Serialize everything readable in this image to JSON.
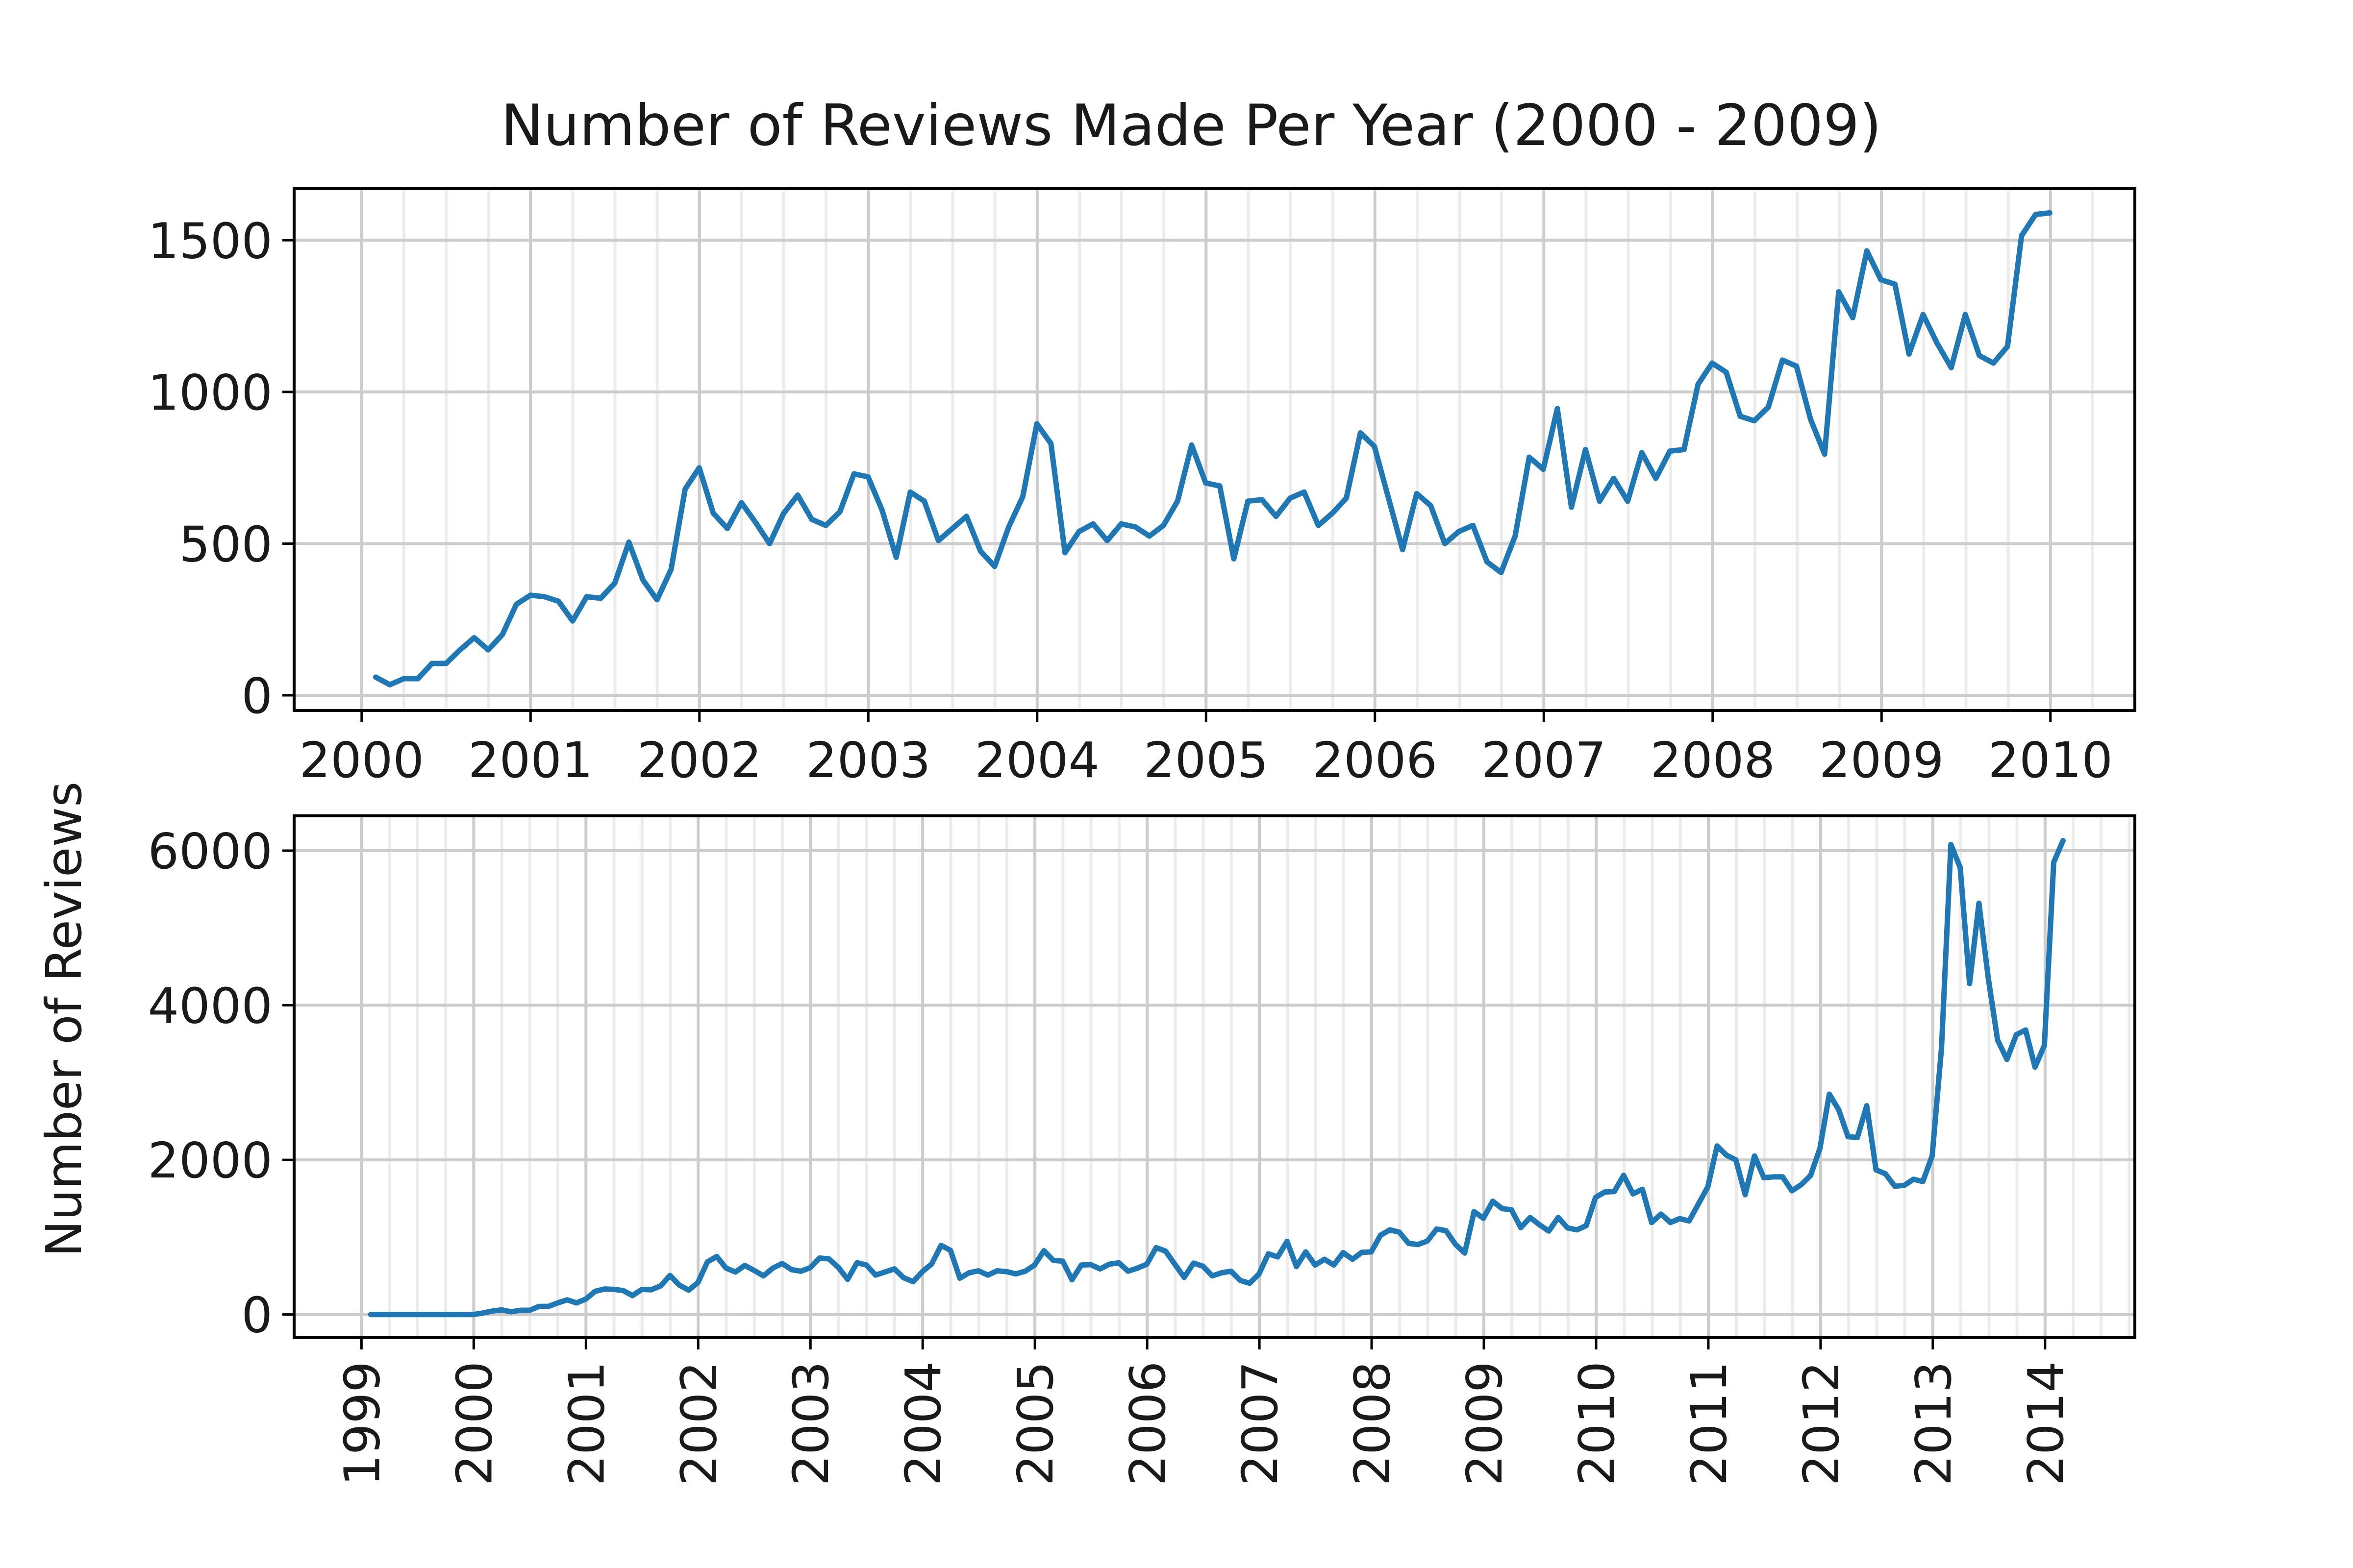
{
  "chart_data": [
    {
      "type": "line",
      "title": "Number of Reviews Made Per Year (2000 - 2009)",
      "xlabel": "",
      "ylabel": "",
      "xlim": [
        1999.6,
        2010.5
      ],
      "ylim": [
        -50,
        1670
      ],
      "x_ticks": [
        2000,
        2001,
        2002,
        2003,
        2004,
        2005,
        2006,
        2007,
        2008,
        2009,
        2010
      ],
      "x_tick_labels": [
        "2000",
        "2001",
        "2002",
        "2003",
        "2004",
        "2005",
        "2006",
        "2007",
        "2008",
        "2009",
        "2010"
      ],
      "y_ticks": [
        0,
        500,
        1000,
        1500
      ],
      "y_tick_labels": [
        "0",
        "500",
        "1000",
        "1500"
      ],
      "grid": true,
      "color": "#1f77b4",
      "series": [
        {
          "x_start": 2000.083,
          "x_step": 0.0833,
          "values": [
            60,
            35,
            55,
            55,
            105,
            105,
            150,
            190,
            150,
            200,
            300,
            330,
            325,
            310,
            245,
            325,
            320,
            370,
            505,
            380,
            315,
            415,
            680,
            750,
            600,
            550,
            635,
            570,
            500,
            600,
            660,
            580,
            560,
            605,
            730,
            720,
            610,
            455,
            670,
            640,
            510,
            550,
            590,
            475,
            425,
            555,
            655,
            895,
            830,
            470,
            540,
            565,
            510,
            565,
            555,
            525,
            560,
            640,
            825,
            700,
            690,
            450,
            640,
            645,
            590,
            650,
            670,
            560,
            600,
            650,
            865,
            820,
            650,
            480,
            665,
            625,
            500,
            540,
            560,
            440,
            405,
            525,
            785,
            745,
            945,
            620,
            810,
            640,
            715,
            640,
            800,
            715,
            805,
            810,
            1025,
            1095,
            1065,
            920,
            905,
            950,
            1105,
            1085,
            910,
            795,
            1330,
            1245,
            1465,
            1370,
            1355,
            1125,
            1255,
            1160,
            1080,
            1255,
            1120,
            1095,
            1150,
            1515,
            1585,
            1590
          ]
        }
      ]
    },
    {
      "type": "line",
      "title": "",
      "xlabel": "",
      "ylabel": "Number of Reviews",
      "xlim": [
        1998.4,
        2014.8
      ],
      "ylim": [
        -300,
        6450
      ],
      "x_ticks": [
        1999,
        2000,
        2001,
        2002,
        2003,
        2004,
        2005,
        2006,
        2007,
        2008,
        2009,
        2010,
        2011,
        2012,
        2013,
        2014
      ],
      "x_tick_labels": [
        "1999",
        "2000",
        "2001",
        "2002",
        "2003",
        "2004",
        "2005",
        "2006",
        "2007",
        "2008",
        "2009",
        "2010",
        "2011",
        "2012",
        "2013",
        "2014"
      ],
      "y_ticks": [
        0,
        2000,
        4000,
        6000
      ],
      "y_tick_labels": [
        "0",
        "2000",
        "4000",
        "6000"
      ],
      "grid": true,
      "color": "#1f77b4",
      "series": [
        {
          "x_start": 1999.083,
          "x_step": 0.0833,
          "values": [
            0,
            0,
            0,
            0,
            0,
            0,
            0,
            0,
            0,
            0,
            0,
            0,
            20,
            45,
            60,
            35,
            55,
            55,
            105,
            105,
            150,
            190,
            150,
            200,
            300,
            330,
            325,
            310,
            245,
            325,
            320,
            370,
            505,
            380,
            315,
            415,
            680,
            750,
            600,
            550,
            635,
            570,
            500,
            600,
            660,
            580,
            560,
            605,
            730,
            720,
            610,
            455,
            670,
            640,
            510,
            550,
            590,
            475,
            425,
            555,
            655,
            895,
            830,
            470,
            540,
            565,
            510,
            565,
            555,
            525,
            560,
            640,
            825,
            700,
            690,
            450,
            640,
            645,
            590,
            650,
            670,
            560,
            600,
            650,
            865,
            820,
            650,
            480,
            665,
            625,
            500,
            540,
            560,
            440,
            405,
            525,
            785,
            745,
            945,
            620,
            810,
            640,
            715,
            640,
            800,
            715,
            805,
            810,
            1025,
            1095,
            1065,
            920,
            905,
            950,
            1105,
            1085,
            910,
            795,
            1330,
            1245,
            1465,
            1370,
            1355,
            1125,
            1255,
            1160,
            1080,
            1255,
            1120,
            1095,
            1150,
            1515,
            1585,
            1590,
            1800,
            1560,
            1620,
            1190,
            1300,
            1190,
            1240,
            1210,
            1430,
            1650,
            2180,
            2060,
            2000,
            1550,
            2050,
            1770,
            1780,
            1780,
            1600,
            1680,
            1800,
            2150,
            2850,
            2650,
            2300,
            2290,
            2700,
            1870,
            1820,
            1660,
            1670,
            1750,
            1720,
            2050,
            3450,
            6080,
            5780,
            4280,
            5320,
            4350,
            3550,
            3300,
            3620,
            3680,
            3200,
            3480,
            5850,
            6130
          ]
        }
      ]
    }
  ]
}
